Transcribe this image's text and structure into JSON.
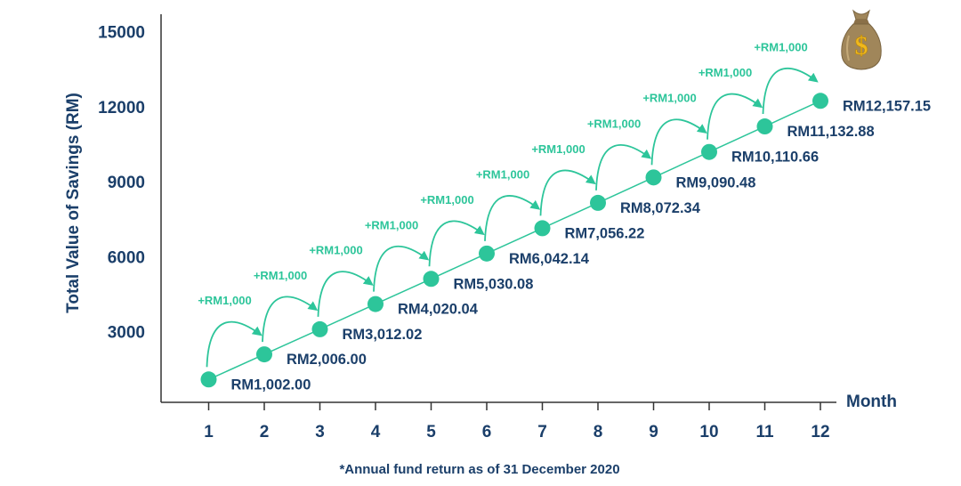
{
  "chart_data": {
    "type": "line",
    "ylabel": "Total Value of Savings (RM)",
    "xlabel": "Month",
    "x": [
      1,
      2,
      3,
      4,
      5,
      6,
      7,
      8,
      9,
      10,
      11,
      12
    ],
    "x_tick_labels": [
      "1",
      "2",
      "3",
      "4",
      "5",
      "6",
      "7",
      "8",
      "9",
      "10",
      "11",
      "12"
    ],
    "y_ticks": [
      3000,
      6000,
      9000,
      12000,
      15000
    ],
    "y_tick_labels": [
      "3000",
      "6000",
      "9000",
      "12000",
      "15000"
    ],
    "ylim": [
      0,
      15000
    ],
    "series": [
      {
        "values": [
          1002.0,
          2006.0,
          3012.02,
          4020.04,
          5030.08,
          6042.14,
          7056.22,
          8072.34,
          9090.48,
          10110.66,
          11132.88,
          12157.15
        ],
        "labels": [
          "RM1,002.00",
          "RM2,006.00",
          "RM3,012.02",
          "RM4,020.04",
          "RM5,030.08",
          "RM6,042.14",
          "RM7,056.22",
          "RM8,072.34",
          "RM9,090.48",
          "RM10,110.66",
          "RM11,132.88",
          "RM12,157.15"
        ]
      }
    ],
    "increment_label": "+RM1,000",
    "increment_count": 11,
    "grid": false,
    "footnote": "*Annual fund return as of 31 December 2020"
  },
  "icons": {
    "money_bag": "money-bag-icon"
  },
  "colors": {
    "point": "#2dc59a",
    "line": "#2dc59a",
    "text": "#1b3f6a",
    "axis": "#333333",
    "increment": "#2dc59a",
    "bag": "#a0865a",
    "coin": "#f0b81c"
  }
}
